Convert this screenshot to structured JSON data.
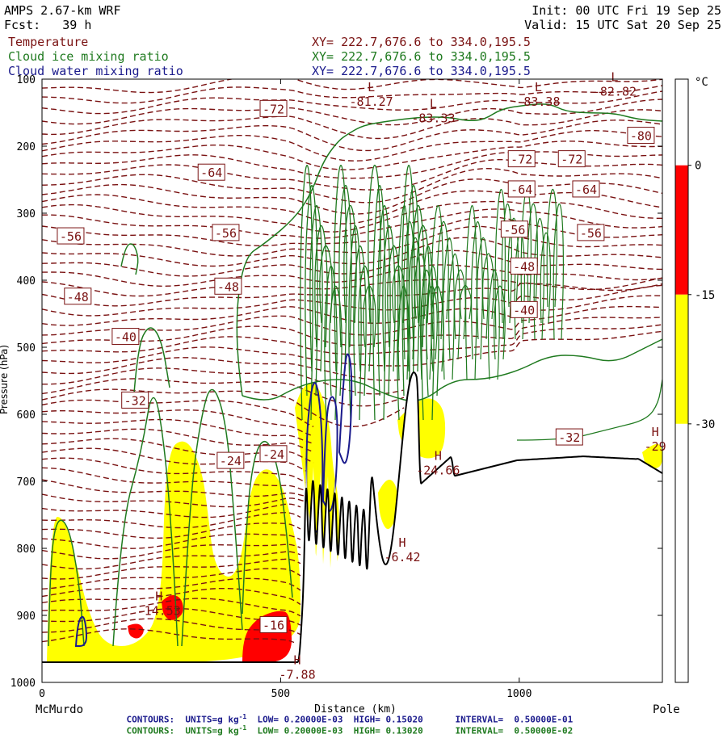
{
  "header": {
    "model": "AMPS 2.67-km WRF",
    "init": "Init: 00 UTC Fri 19 Sep 25",
    "fcst": "Fcst:   39 h",
    "valid": "Valid: 15 UTC Sat 20 Sep 25",
    "fields": [
      {
        "name": "Temperature",
        "xy": "XY= 222.7,676.6 to 334.0,195.5",
        "color": "#7a1212"
      },
      {
        "name": "Cloud ice mixing ratio",
        "xy": "XY= 222.7,676.6 to 334.0,195.5",
        "color": "#1f7a1f"
      },
      {
        "name": "Cloud water mixing ratio",
        "xy": "XY= 222.7,676.6 to 334.0,195.5",
        "color": "#1a1a8c"
      }
    ]
  },
  "footer": {
    "water": {
      "label": "CONTOURS:",
      "units": "UNITS=g kg",
      "sup": "-1",
      "low": "LOW= 0.20000E-03",
      "high": "HIGH= 0.15020",
      "interval": "INTERVAL=  0.50000E-01",
      "color": "#1a1a8c"
    },
    "ice": {
      "label": "CONTOURS:",
      "units": "UNITS=g kg",
      "sup": "-1",
      "low": "LOW= 0.20000E-03",
      "high": "HIGH= 0.13020",
      "interval": "INTERVAL=  0.50000E-02",
      "color": "#1f7a1f"
    }
  },
  "chart_data": {
    "type": "contour",
    "ylabel": "Pressure (hPa)",
    "xlabel": "Distance (km)",
    "y_axis": {
      "ticks": [
        100,
        200,
        300,
        400,
        500,
        600,
        700,
        800,
        900,
        1000
      ],
      "range": [
        100,
        1000
      ],
      "inverted": true
    },
    "x_axis": {
      "ticks": [
        0,
        500,
        1000
      ],
      "range": [
        0,
        1300
      ],
      "start_label": "McMurdo",
      "end_label": "Pole"
    },
    "colorbar": {
      "unit": "°C",
      "ticks": [
        0,
        -15,
        -30
      ],
      "bands": [
        {
          "from": 0,
          "to": 10,
          "color": "#ffffff"
        },
        {
          "from": -15,
          "to": 0,
          "color": "#ff0000"
        },
        {
          "from": -30,
          "to": -15,
          "color": "#ffff00"
        },
        {
          "from": -60,
          "to": -30,
          "color": "#ffffff"
        }
      ]
    },
    "temperature_labels": [
      {
        "text": "-72",
        "x": 485,
        "p": 145
      },
      {
        "text": "-64",
        "x": 355,
        "p": 240
      },
      {
        "text": "-56",
        "x": 60,
        "p": 335
      },
      {
        "text": "-56",
        "x": 385,
        "p": 330
      },
      {
        "text": "-48",
        "x": 75,
        "p": 425
      },
      {
        "text": "-48",
        "x": 390,
        "p": 410
      },
      {
        "text": "-40",
        "x": 175,
        "p": 485
      },
      {
        "text": "-32",
        "x": 195,
        "p": 580
      },
      {
        "text": "-24",
        "x": 395,
        "p": 670
      },
      {
        "text": "-24",
        "x": 485,
        "p": 660
      },
      {
        "text": "-16",
        "x": 485,
        "p": 915
      },
      {
        "text": "-80",
        "x": 1255,
        "p": 185
      },
      {
        "text": "-72",
        "x": 1005,
        "p": 220
      },
      {
        "text": "-72",
        "x": 1110,
        "p": 220
      },
      {
        "text": "-64",
        "x": 1005,
        "p": 265
      },
      {
        "text": "-64",
        "x": 1140,
        "p": 265
      },
      {
        "text": "-56",
        "x": 1150,
        "p": 330
      },
      {
        "text": "-56",
        "x": 990,
        "p": 325
      },
      {
        "text": "-48",
        "x": 1010,
        "p": 380
      },
      {
        "text": "-40",
        "x": 1010,
        "p": 445
      },
      {
        "text": "-32",
        "x": 1105,
        "p": 635
      }
    ],
    "extrema": [
      {
        "kind": "L",
        "value": "-81.27",
        "x": 690,
        "p": 125
      },
      {
        "kind": "L",
        "value": "-83.33",
        "x": 820,
        "p": 150
      },
      {
        "kind": "L",
        "value": "-83.38",
        "x": 1040,
        "p": 125
      },
      {
        "kind": "L",
        "value": "-82.82",
        "x": 1200,
        "p": 110
      },
      {
        "kind": "H",
        "value": "-14.53",
        "x": 245,
        "p": 885
      },
      {
        "kind": "H",
        "value": "-7.88",
        "x": 535,
        "p": 980
      },
      {
        "kind": "H",
        "value": "-6.42",
        "x": 755,
        "p": 805
      },
      {
        "kind": "H",
        "value": "-24.66",
        "x": 830,
        "p": 675
      },
      {
        "kind": "H",
        "value": "-29",
        "x": 1285,
        "p": 640
      }
    ]
  }
}
